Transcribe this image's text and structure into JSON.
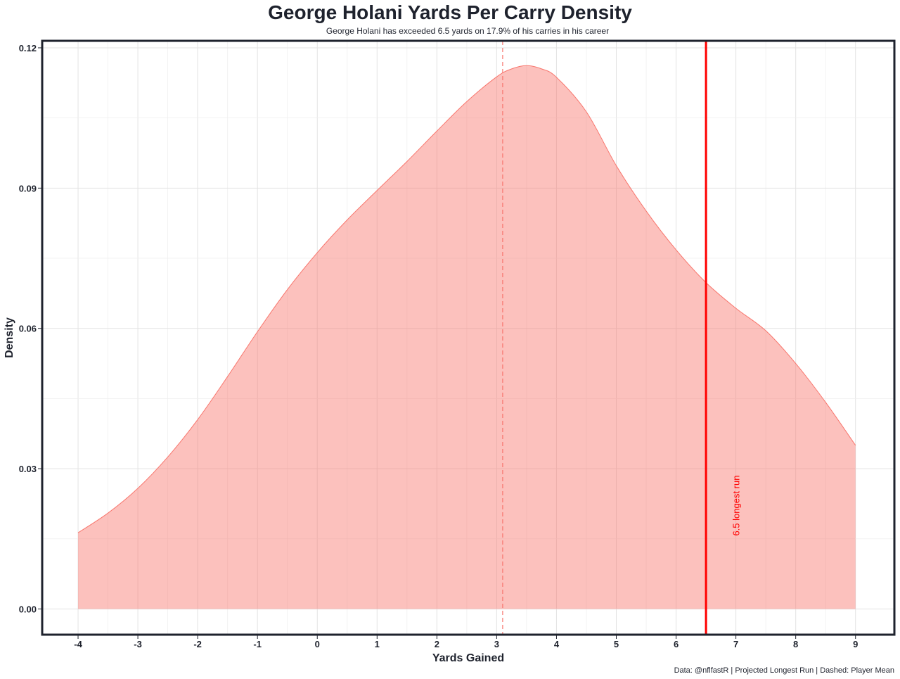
{
  "chart_data": {
    "type": "area",
    "title": "George Holani Yards Per Carry Density",
    "subtitle": "George Holani has exceeded 6.5 yards on 17.9% of his carries in his career",
    "xlabel": "Yards Gained",
    "ylabel": "Density",
    "caption": "Data: @nflfastR | Projected Longest Run | Dashed: Player Mean",
    "xlim": [
      -4.6,
      9.65
    ],
    "ylim": [
      -0.0055,
      0.1215
    ],
    "x_ticks": [
      -4,
      -3,
      -2,
      -1,
      0,
      1,
      2,
      3,
      4,
      5,
      6,
      7,
      8,
      9
    ],
    "x_tick_labels": [
      "-4",
      "-3",
      "-2",
      "-1",
      "0",
      "1",
      "2",
      "3",
      "4",
      "5",
      "6",
      "7",
      "8",
      "9"
    ],
    "y_ticks": [
      0,
      0.03,
      0.06,
      0.09,
      0.12
    ],
    "y_tick_labels": [
      "0.00",
      "0.03",
      "0.06",
      "0.09",
      "0.12"
    ],
    "grid": true,
    "series": [
      {
        "x": [
          -4,
          -3.5,
          -3,
          -2.5,
          -2,
          -1.5,
          -1,
          -0.5,
          0,
          0.5,
          1,
          1.5,
          2,
          2.5,
          3,
          3.25,
          3.5,
          3.75,
          4,
          4.5,
          5,
          5.5,
          6,
          6.5,
          7,
          7.5,
          8,
          8.5,
          9
        ],
        "y": [
          0.0163,
          0.0205,
          0.0258,
          0.0325,
          0.0405,
          0.0497,
          0.0593,
          0.0683,
          0.0762,
          0.0832,
          0.0895,
          0.0957,
          0.1022,
          0.1085,
          0.1138,
          0.1155,
          0.1162,
          0.1155,
          0.1137,
          0.1063,
          0.0948,
          0.0851,
          0.0768,
          0.0698,
          0.0643,
          0.0595,
          0.0525,
          0.0442,
          0.035
        ],
        "color": "#f8766d"
      }
    ],
    "mean_line": {
      "x": 3.1,
      "style": "dashed",
      "color": "#f8766d"
    },
    "threshold_line": {
      "x": 6.5,
      "style": "solid",
      "color": "#ff0000"
    },
    "annotation": {
      "text": "6.5 longest run",
      "x": 7.0,
      "y": 0.02,
      "color": "#ff0000"
    }
  }
}
